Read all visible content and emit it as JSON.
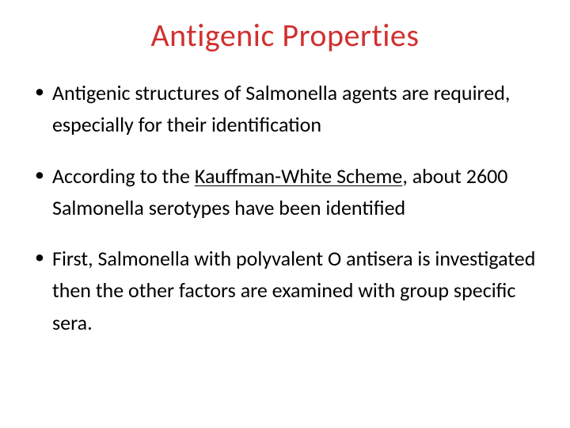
{
  "title": "Antigenic Properties",
  "title_color": "#d03030",
  "background_color": "#ffffff",
  "text_color": "#000000",
  "font_family": "Calibri",
  "title_fontsize": 40,
  "body_fontsize": 26,
  "bullets": [
    {
      "pre": "Antigenic structures of Salmonella agents are required, especially for their identification",
      "underline": "",
      "post": ""
    },
    {
      "pre": "According to the ",
      "underline": "Kauffman-White Scheme",
      "post": ", about 2600 Salmonella serotypes have been identified"
    },
    {
      "pre": "First, Salmonella with polyvalent O antisera is investigated then the other factors are examined with group specific sera.",
      "underline": "",
      "post": ""
    }
  ]
}
